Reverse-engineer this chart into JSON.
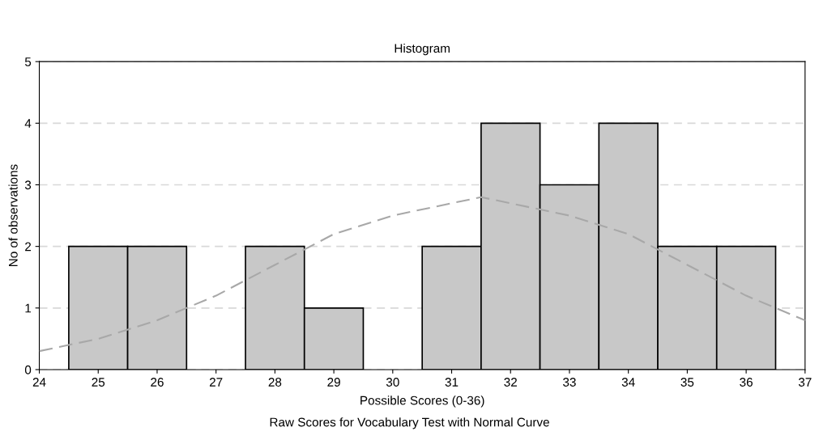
{
  "chart_data": {
    "type": "histogram",
    "title": "Histogram",
    "xlabel": "Possible Scores (0-36)",
    "ylabel": "No of observations",
    "bins": [
      24.5,
      25.5,
      26.5,
      27.5,
      28.5,
      29.5,
      30.5,
      31.5,
      32.5,
      33.5,
      34.5,
      35.5,
      36.5
    ],
    "values": [
      2,
      2,
      0,
      2,
      1,
      0,
      2,
      4,
      3,
      4,
      2,
      2
    ],
    "color": "#c8c8c8",
    "series": [
      {
        "type": "line",
        "color": "#a8a8a8",
        "line_style": "dashed",
        "x": [
          24,
          25,
          26,
          27,
          28,
          29,
          30,
          31,
          31.5,
          32,
          33,
          34,
          35,
          36,
          37
        ],
        "values": [
          0.3,
          0.5,
          0.8,
          1.2,
          1.7,
          2.2,
          2.5,
          2.7,
          2.8,
          2.7,
          2.5,
          2.2,
          1.7,
          1.2,
          0.8
        ]
      }
    ],
    "xlim": [
      24,
      37
    ],
    "xticks": [
      24,
      25,
      26,
      27,
      28,
      29,
      30,
      31,
      32,
      33,
      34,
      35,
      36,
      37
    ],
    "ylim": [
      0,
      5
    ],
    "yticks": [
      0,
      1,
      2,
      3,
      4,
      5
    ],
    "grid": "y",
    "annotations": [
      "Raw Scores for Vocabulary Test with Normal Curve"
    ]
  }
}
